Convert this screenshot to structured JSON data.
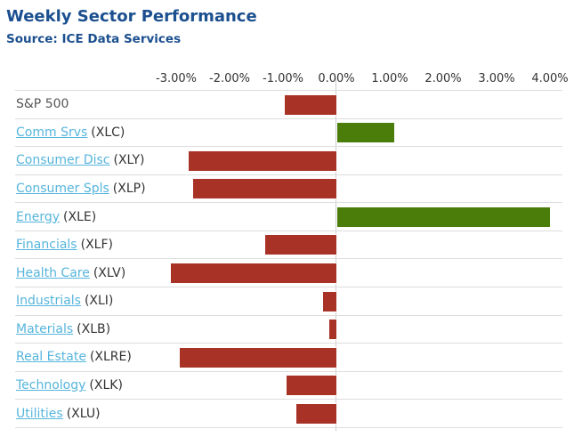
{
  "header": {
    "title": "Weekly Sector Performance",
    "source": "Source: ICE Data Services"
  },
  "chart_data": {
    "type": "bar",
    "orientation": "horizontal",
    "title": "Weekly Sector Performance",
    "subtitle": "Source: ICE Data Services",
    "xlabel": "",
    "ylabel": "",
    "x_tick_labels": [
      "-3.00%",
      "-2.00%",
      "-1.00%",
      "0.00%",
      "1.00%",
      "2.00%",
      "3.00%",
      "4.00%"
    ],
    "x_tick_values": [
      -3,
      -2,
      -1,
      0,
      1,
      2,
      3,
      4
    ],
    "grid": true,
    "legend": "none",
    "unit": "percent",
    "rows": [
      {
        "name": "S&P 500",
        "ticker": "",
        "value": -0.97,
        "link": false
      },
      {
        "name": "Comm Srvs",
        "ticker": "(XLC)",
        "value": 1.07,
        "link": true
      },
      {
        "name": "Consumer Disc",
        "ticker": "(XLY)",
        "value": -2.77,
        "link": true
      },
      {
        "name": "Consumer Spls",
        "ticker": "(XLP)",
        "value": -2.68,
        "link": true
      },
      {
        "name": "Energy",
        "ticker": "(XLE)",
        "value": 3.98,
        "link": true
      },
      {
        "name": "Financials",
        "ticker": "(XLF)",
        "value": -1.33,
        "link": true
      },
      {
        "name": "Health Care",
        "ticker": "(XLV)",
        "value": -3.1,
        "link": true
      },
      {
        "name": "Industrials",
        "ticker": "(XLI)",
        "value": -0.25,
        "link": true
      },
      {
        "name": "Materials",
        "ticker": "(XLB)",
        "value": -0.13,
        "link": true
      },
      {
        "name": "Real Estate",
        "ticker": "(XLRE)",
        "value": -2.93,
        "link": true
      },
      {
        "name": "Technology",
        "ticker": "(XLK)",
        "value": -0.93,
        "link": true
      },
      {
        "name": "Utilities",
        "ticker": "(XLU)",
        "value": -0.75,
        "link": true
      }
    ],
    "colors": {
      "negative_bar": "#a93226",
      "positive_bar": "#4a7d0a",
      "title_blue": "#1b4f8f",
      "link_blue": "#56b5dc",
      "axis_text": "#333333",
      "gridline": "#dddddd",
      "zero_line": "#cccccc"
    }
  }
}
